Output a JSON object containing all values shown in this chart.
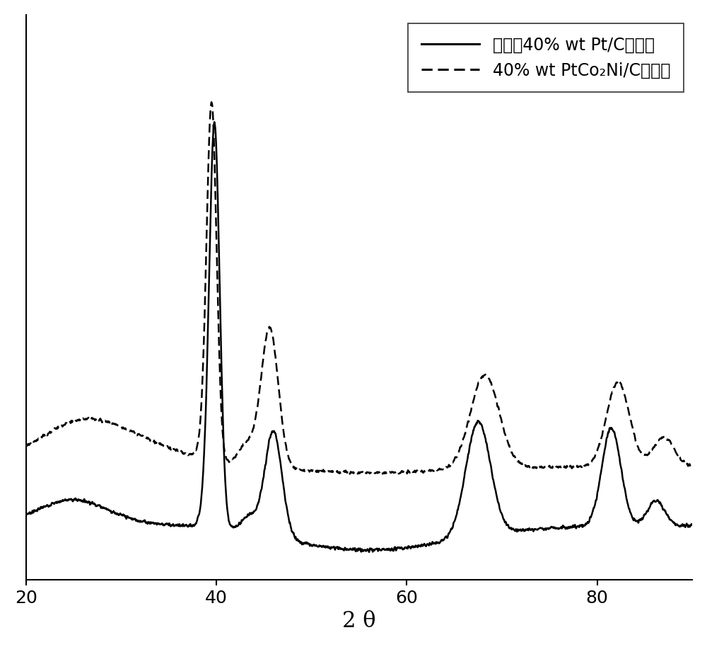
{
  "xlabel": "2 θ",
  "xlim": [
    20,
    90
  ],
  "xticks": [
    20,
    40,
    60,
    80
  ],
  "background_color": "#ffffff",
  "line1_label": "商业卆40% wt Pt/C催化剂",
  "line2_label": "40% wt PtCo₂Ni/C催化剂",
  "line_color": "#000000",
  "line_width": 1.8,
  "legend_fontsize": 17,
  "xlabel_fontsize": 22,
  "ylim": [
    -0.08,
    1.25
  ]
}
